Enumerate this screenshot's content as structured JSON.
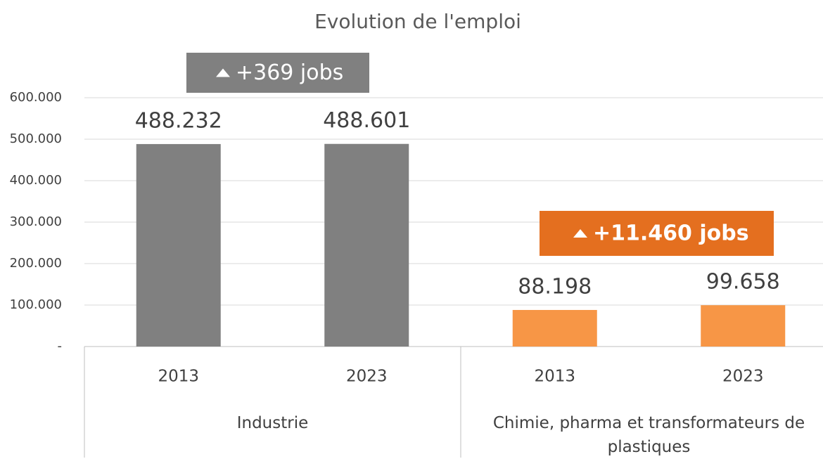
{
  "chart_data": {
    "type": "bar",
    "title": "Evolution de l'emploi",
    "categories": [
      "2013",
      "2023"
    ],
    "series": [
      {
        "name": "Industrie",
        "color": "#808080",
        "values": [
          488232,
          488601
        ],
        "value_labels": [
          "488.232",
          "488.601"
        ]
      },
      {
        "name": "Chimie, pharma et transformateurs de plastiques",
        "color": "#f79646",
        "values": [
          88198,
          99658
        ],
        "value_labels": [
          "88.198",
          "99.658"
        ]
      }
    ],
    "annotations": [
      {
        "text": "+369 jobs",
        "color": "#808080"
      },
      {
        "text": "+11.460 jobs",
        "color": "#e46f1f"
      }
    ],
    "ylim": [
      0,
      600000
    ],
    "yticks": [
      {
        "value": 0,
        "label": "-"
      },
      {
        "value": 100000,
        "label": "100.000"
      },
      {
        "value": 200000,
        "label": "200.000"
      },
      {
        "value": 300000,
        "label": "300.000"
      },
      {
        "value": 400000,
        "label": "400.000"
      },
      {
        "value": 500000,
        "label": "500.000"
      },
      {
        "value": 600000,
        "label": "600.000"
      }
    ],
    "grid": true
  }
}
